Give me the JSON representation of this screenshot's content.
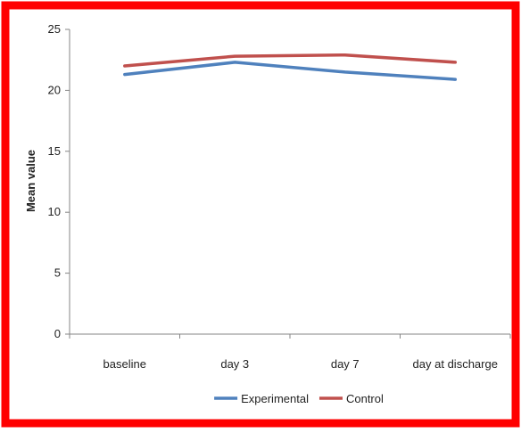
{
  "chart_data": {
    "type": "line",
    "title": "",
    "xlabel": "",
    "ylabel": "Mean value",
    "categories": [
      "baseline",
      "day 3",
      "day 7",
      "day at discharge"
    ],
    "ylim": [
      0,
      25
    ],
    "yticks": [
      0,
      5,
      10,
      15,
      20,
      25
    ],
    "grid": false,
    "legend_position": "bottom",
    "series": [
      {
        "name": "Experimental",
        "color": "#4F81BD",
        "values": [
          21.3,
          22.3,
          21.5,
          20.9
        ]
      },
      {
        "name": "Control",
        "color": "#C0504D",
        "values": [
          22.0,
          22.8,
          22.9,
          22.3
        ]
      }
    ],
    "frame_color": "#FF0000"
  }
}
